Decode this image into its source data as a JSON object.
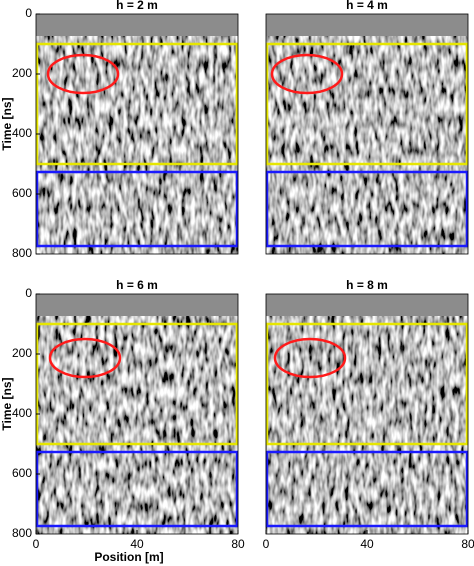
{
  "chart_data": [
    {
      "type": "image",
      "title": "h = 2 m",
      "ylabel": "Time [ns]",
      "ylim": [
        0,
        800
      ],
      "yticks": [
        0,
        200,
        400,
        600,
        800
      ]
    },
    {
      "type": "image",
      "title": "h = 4 m"
    },
    {
      "type": "image",
      "title": "h = 6 m",
      "xlabel": "Position [m]",
      "xlim": [
        0,
        80
      ],
      "xticks": [
        0,
        40,
        80
      ],
      "ylabel": "Time [ns]",
      "ylim": [
        0,
        800
      ],
      "yticks": [
        0,
        200,
        400,
        600,
        800
      ]
    },
    {
      "type": "image",
      "title": "h = 8 m",
      "xlim": [
        0,
        80
      ],
      "xticks": [
        0,
        40,
        80
      ]
    }
  ]
}
